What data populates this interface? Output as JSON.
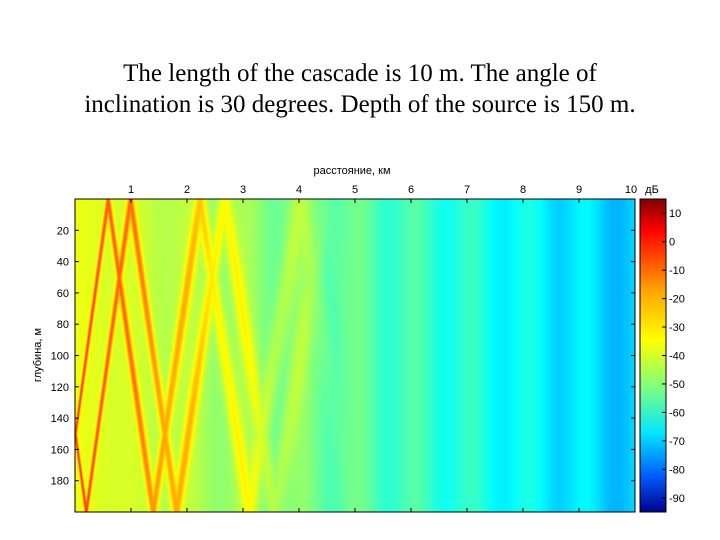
{
  "slide": {
    "caption_line1": "The length of the cascade is 10 m. The angle of",
    "caption_line2": "inclination is 30 degrees. Depth of the source is 150 m."
  },
  "chart_data": {
    "type": "heatmap",
    "xlabel": "расстояние, км",
    "ylabel": "глубина, м",
    "colorbar_label": "дБ",
    "xlim": [
      0,
      10
    ],
    "ylim": [
      0,
      200
    ],
    "x_ticks": [
      "1",
      "2",
      "3",
      "4",
      "5",
      "6",
      "7",
      "8",
      "9",
      "10"
    ],
    "y_ticks": [
      "20",
      "40",
      "60",
      "80",
      "100",
      "120",
      "140",
      "160",
      "180"
    ],
    "colorbar_ticks": [
      "10",
      "0",
      "-10",
      "-20",
      "-30",
      "-40",
      "-50",
      "-60",
      "-70",
      "-80",
      "-90"
    ],
    "clim": [
      -95,
      15
    ],
    "source_depth_m": 150,
    "field_description": "intensity in dB: zigzag bright beams near source decaying with range"
  }
}
